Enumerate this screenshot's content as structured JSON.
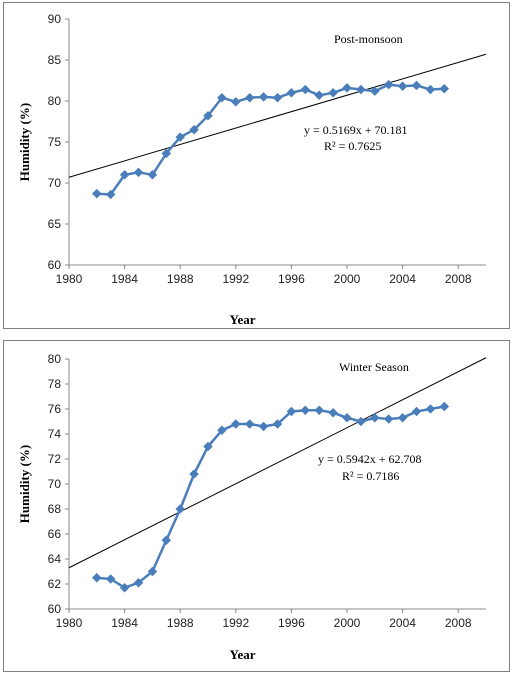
{
  "chart_data": [
    {
      "type": "scatter",
      "title": "Post-monsoon",
      "xlabel": "Year",
      "ylabel": "Humidity (%)",
      "xlim": [
        1980,
        2010
      ],
      "ylim": [
        60,
        90
      ],
      "xticks": [
        1980,
        1984,
        1988,
        1992,
        1996,
        2000,
        2004,
        2008
      ],
      "yticks": [
        60,
        65,
        70,
        75,
        80,
        85,
        90
      ],
      "grid": false,
      "series": [
        {
          "marker": "diamond",
          "color": "#4a7ebb",
          "x": [
            1982,
            1983,
            1984,
            1985,
            1986,
            1987,
            1988,
            1989,
            1990,
            1991,
            1992,
            1993,
            1994,
            1995,
            1996,
            1997,
            1998,
            1999,
            2000,
            2001,
            2002,
            2003,
            2004,
            2005,
            2006,
            2007
          ],
          "y": [
            68.7,
            68.6,
            71.0,
            71.3,
            71.0,
            73.6,
            75.6,
            76.5,
            78.2,
            80.4,
            79.9,
            80.4,
            80.5,
            80.4,
            81.0,
            81.4,
            80.7,
            81.0,
            81.6,
            81.4,
            81.2,
            82.0,
            81.8,
            81.9,
            81.4,
            81.5
          ]
        }
      ],
      "trendline": {
        "color": "#000000",
        "equation": "y = 0.5169x + 70.181",
        "r_squared": "R² = 0.7625",
        "start": [
          1980,
          70.7
        ],
        "end": [
          2010,
          85.7
        ]
      }
    },
    {
      "type": "scatter",
      "title": "Winter Season",
      "xlabel": "Year",
      "ylabel": "Humidity (%)",
      "xlim": [
        1980,
        2010
      ],
      "ylim": [
        60,
        80
      ],
      "xticks": [
        1980,
        1984,
        1988,
        1992,
        1996,
        2000,
        2004,
        2008
      ],
      "yticks": [
        60,
        62,
        64,
        66,
        68,
        70,
        72,
        74,
        76,
        78,
        80
      ],
      "grid": false,
      "series": [
        {
          "marker": "diamond",
          "color": "#4a7ebb",
          "x": [
            1982,
            1983,
            1984,
            1985,
            1986,
            1987,
            1988,
            1989,
            1990,
            1991,
            1992,
            1993,
            1994,
            1995,
            1996,
            1997,
            1998,
            1999,
            2000,
            2001,
            2002,
            2003,
            2004,
            2005,
            2006,
            2007
          ],
          "y": [
            62.5,
            62.4,
            61.7,
            62.1,
            63.0,
            65.5,
            68.0,
            70.8,
            73.0,
            74.3,
            74.8,
            74.8,
            74.6,
            74.8,
            75.8,
            75.9,
            75.9,
            75.7,
            75.3,
            75.0,
            75.3,
            75.2,
            75.3,
            75.8,
            76.0,
            76.2
          ]
        }
      ],
      "trendline": {
        "color": "#000000",
        "equation": "y = 0.5942x + 62.708",
        "r_squared": "R² = 0.7186",
        "start": [
          1980,
          63.3
        ],
        "end": [
          2010,
          80.1
        ]
      }
    }
  ]
}
